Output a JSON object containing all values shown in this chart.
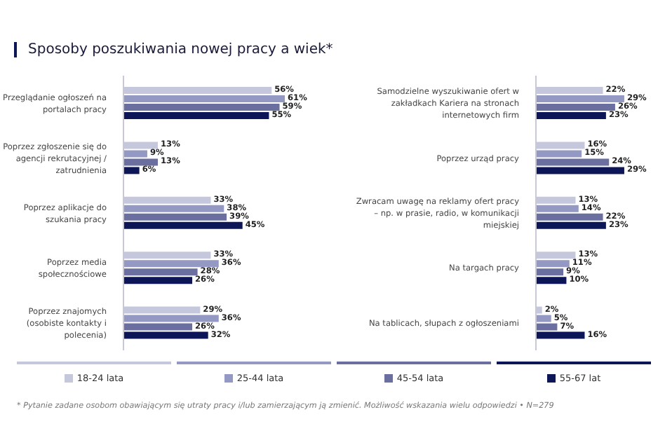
{
  "chart_data": [
    {
      "type": "bar",
      "orientation": "horizontal",
      "title": "Sposoby poszukiwania nowej pracy a wiek*",
      "categories": [
        "Przeglądanie ogłoszeń na portalach pracy",
        "Poprzez zgłoszenie się do agencji rekrutacyjnej / zatrudnienia",
        "Poprzez aplikacje do szukania pracy",
        "Poprzez media społecznościowe",
        "Poprzez znajomych (osobiste kontakty i polecenia)"
      ],
      "legend": "bottom",
      "annotations": [
        "* Pytanie zadane osobom obawiającym się utraty pracy i/lub zamierzającym ją zmienić. Możliwość wskazania wielu odpowiedzi • N=279"
      ],
      "series": [
        {
          "name": "18-24 lata",
          "color": "#c5c8dd",
          "values": [
            56,
            13,
            33,
            33,
            29
          ],
          "value_labels": [
            "56%",
            "13%",
            "33%",
            "33%",
            "29%"
          ]
        },
        {
          "name": "25-44 lata",
          "color": "#9399c2",
          "values": [
            61,
            9,
            38,
            36,
            36
          ],
          "value_labels": [
            "61%",
            "9%",
            "38%",
            "36%",
            "36%"
          ]
        },
        {
          "name": "45-54 lata",
          "color": "#6a6f9f",
          "values": [
            59,
            13,
            39,
            28,
            26
          ],
          "value_labels": [
            "59%",
            "13%",
            "39%",
            "28%",
            "26%"
          ]
        },
        {
          "name": "55-67 lat",
          "color": "#0d1757",
          "values": [
            55,
            6,
            45,
            26,
            32
          ],
          "value_labels": [
            "55%",
            "6%",
            "45%",
            "26%",
            "32%"
          ]
        }
      ]
    },
    {
      "type": "bar",
      "orientation": "horizontal",
      "categories": [
        "Samodzielne wyszukiwanie ofert w zakładkach Kariera na stronach internetowych firm",
        "Poprzez urząd pracy",
        "Zwracam uwagę na reklamy ofert pracy – np. w prasie, radio, w komunikacji miejskiej",
        "Na targach pracy",
        "Na tablicach, słupach z ogłoszeniami"
      ],
      "series": [
        {
          "color": "#c5c8dd",
          "values": [
            22,
            16,
            13,
            13,
            2
          ],
          "value_labels": [
            "22%",
            "16%",
            "13%",
            "13%",
            "2%"
          ]
        },
        {
          "color": "#9399c2",
          "values": [
            29,
            15,
            14,
            11,
            5
          ],
          "value_labels": [
            "29%",
            "15%",
            "14%",
            "11%",
            "5%"
          ]
        },
        {
          "color": "#6a6f9f",
          "values": [
            26,
            24,
            22,
            9,
            7
          ],
          "value_labels": [
            "26%",
            "24%",
            "22%",
            "9%",
            "7%"
          ]
        },
        {
          "color": "#0d1757",
          "values": [
            23,
            29,
            23,
            10,
            16
          ],
          "value_labels": [
            "23%",
            "29%",
            "23%",
            "10%",
            "16%"
          ]
        }
      ]
    }
  ]
}
